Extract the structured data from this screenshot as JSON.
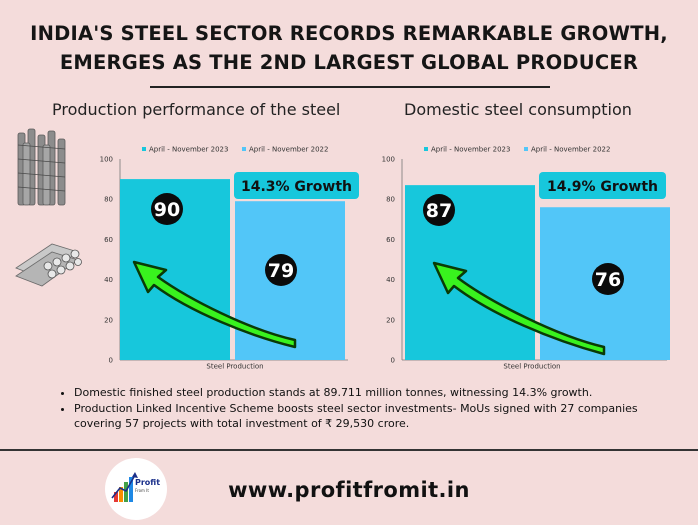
{
  "page": {
    "title_line1": "INDIA'S STEEL SECTOR RECORDS REMARKABLE GROWTH,",
    "title_line2": "EMERGES AS THE 2ND LARGEST GLOBAL PRODUCER",
    "website": "www.profitfromit.in",
    "logo_text": "Profit",
    "logo_sub": "From It",
    "bullets": [
      "Domestic finished steel production stands at 89.711 million tonnes, witnessing 14.3% growth.",
      "Production Linked Incentive Scheme boosts steel sector investments- MoUs signed with 27 companies covering 57 projects with total investment of ₹ 29,530 crore."
    ],
    "colors": {
      "background": "#f4dcdb",
      "series_2023": "#17c7dc",
      "series_2022": "#52c6f8",
      "arrow": "#39f21e"
    },
    "icons": [
      "rebar-bundle-icon",
      "steel-pipes-icon",
      "profit-logo-icon"
    ]
  },
  "chart_data": [
    {
      "type": "bar",
      "title": "Production performance of the steel",
      "categories": [
        "Steel Production"
      ],
      "series": [
        {
          "name": "April - November 2023",
          "values": [
            90
          ]
        },
        {
          "name": "April - November 2022",
          "values": [
            79
          ]
        }
      ],
      "ylim": [
        0,
        100
      ],
      "yticks": [
        0,
        20,
        40,
        60,
        80,
        100
      ],
      "legend_position": "top",
      "annotation": "14.3% Growth"
    },
    {
      "type": "bar",
      "title": "Domestic steel consumption",
      "categories": [
        "Steel Production"
      ],
      "series": [
        {
          "name": "April - November 2023",
          "values": [
            87
          ]
        },
        {
          "name": "April - November 2022",
          "values": [
            76
          ]
        }
      ],
      "ylim": [
        0,
        100
      ],
      "yticks": [
        0,
        20,
        40,
        60,
        80,
        100
      ],
      "legend_position": "top",
      "annotation": "14.9% Growth"
    }
  ]
}
